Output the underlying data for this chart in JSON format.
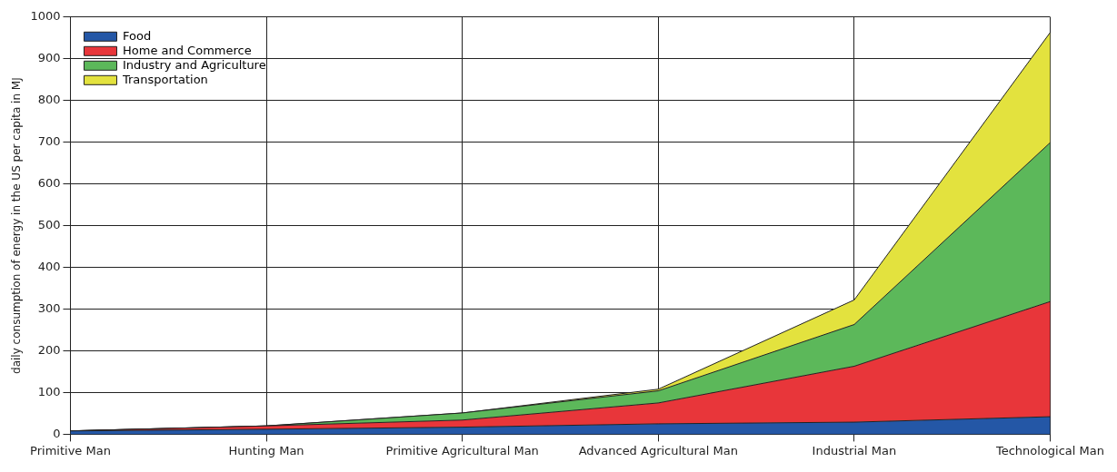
{
  "chart_data": {
    "type": "area",
    "stacked": true,
    "ylabel": "daily consumption of energy in the US per capita in MJ",
    "categories": [
      "Primitive Man",
      "Hunting Man",
      "Primitive Agricultural Man",
      "Advanced Agricultural Man",
      "Industrial Man",
      "Technological Man"
    ],
    "series": [
      {
        "name": "Food",
        "color": "#2457a6",
        "values": [
          8,
          12,
          17,
          25,
          29,
          42
        ]
      },
      {
        "name": "Home and Commerce",
        "color": "#e8363a",
        "values": [
          0,
          8,
          17,
          50,
          134,
          276
        ]
      },
      {
        "name": "Industry and Agriculture",
        "color": "#5cb85a",
        "values": [
          0,
          0,
          17,
          29,
          100,
          381
        ]
      },
      {
        "name": "Transportation",
        "color": "#e3e23e",
        "values": [
          0,
          0,
          0,
          4,
          59,
          264
        ]
      }
    ],
    "ylim": [
      0,
      1000
    ],
    "yticks": [
      0,
      100,
      200,
      300,
      400,
      500,
      600,
      700,
      800,
      900,
      1000
    ],
    "grid": true,
    "legend": "top left"
  }
}
